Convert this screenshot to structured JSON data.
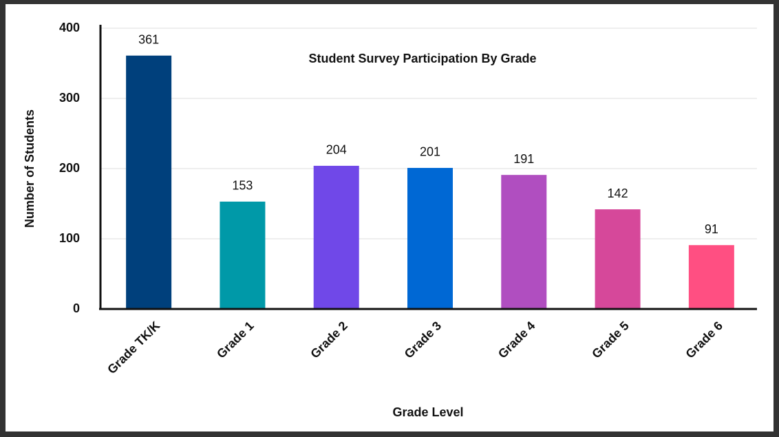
{
  "chart_data": {
    "type": "bar",
    "title": "Student Survey Participation By Grade",
    "x_label": "Grade Level",
    "y_label": "Number of Students",
    "categories": [
      "Grade TK/K",
      "Grade 1",
      "Grade 2",
      "Grade 3",
      "Grade 4",
      "Grade 5",
      "Grade 6"
    ],
    "values": [
      361,
      153,
      204,
      201,
      191,
      142,
      91
    ],
    "colors": [
      "#00407c",
      "#0099a8",
      "#7048e8",
      "#0068d4",
      "#b04ec0",
      "#d6489a",
      "#ff4f82"
    ],
    "ylim": [
      0,
      400
    ],
    "yticks": [
      0,
      100,
      200,
      300,
      400
    ],
    "grid": true
  }
}
